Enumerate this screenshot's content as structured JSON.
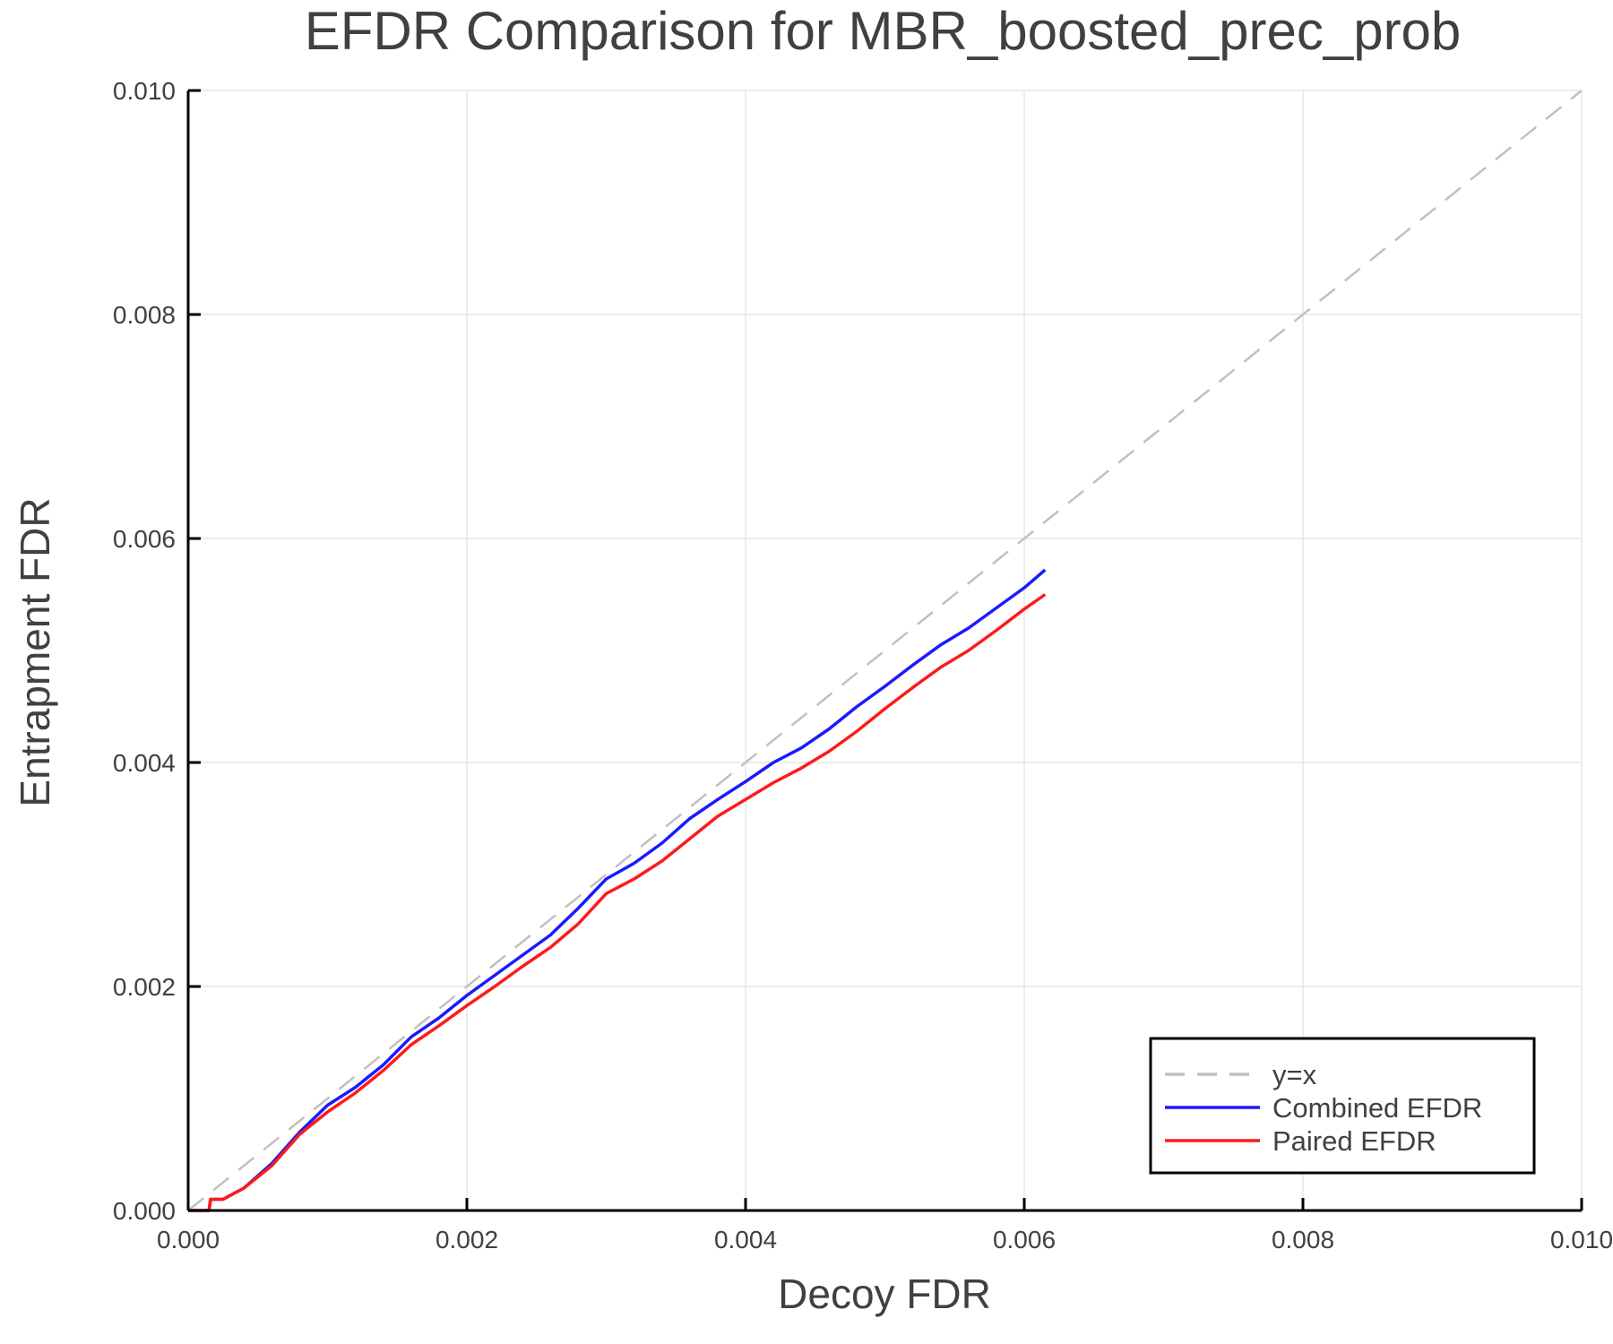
{
  "chart_data": {
    "type": "line",
    "title": "EFDR Comparison for MBR_boosted_prec_prob",
    "xlabel": "Decoy FDR",
    "ylabel": "Entrapment FDR",
    "xlim": [
      0,
      0.01
    ],
    "ylim": [
      0,
      0.01
    ],
    "xticks": [
      "0.000",
      "0.002",
      "0.004",
      "0.006",
      "0.008",
      "0.010"
    ],
    "yticks": [
      "0.000",
      "0.002",
      "0.004",
      "0.006",
      "0.008",
      "0.010"
    ],
    "grid": true,
    "legend_position": "bottom-right",
    "series": [
      {
        "name": "y=x",
        "color": "#c0c0c0",
        "style": "dashed",
        "x": [
          0,
          0.01
        ],
        "y": [
          0,
          0.01
        ]
      },
      {
        "name": "Combined EFDR",
        "color": "#1a1aff",
        "style": "solid",
        "x": [
          0,
          0.00015,
          0.00016,
          0.00025,
          0.0004,
          0.0006,
          0.0008,
          0.001,
          0.0012,
          0.0014,
          0.0016,
          0.0018,
          0.002,
          0.0022,
          0.0024,
          0.0026,
          0.0028,
          0.003,
          0.0032,
          0.0034,
          0.0036,
          0.0038,
          0.004,
          0.0042,
          0.0044,
          0.0046,
          0.0048,
          0.005,
          0.0052,
          0.0054,
          0.0056,
          0.0058,
          0.006,
          0.00615
        ],
        "y": [
          0,
          0,
          0.0001,
          0.0001,
          0.0002,
          0.00042,
          0.0007,
          0.00094,
          0.0011,
          0.0013,
          0.00155,
          0.00172,
          0.00192,
          0.0021,
          0.00228,
          0.00246,
          0.0027,
          0.00296,
          0.0031,
          0.00328,
          0.0035,
          0.00367,
          0.00383,
          0.004,
          0.00413,
          0.0043,
          0.0045,
          0.00468,
          0.00487,
          0.00505,
          0.0052,
          0.00538,
          0.00556,
          0.00572
        ]
      },
      {
        "name": "Paired EFDR",
        "color": "#ff1a1a",
        "style": "solid",
        "x": [
          0,
          0.00015,
          0.00016,
          0.00025,
          0.0004,
          0.0006,
          0.0008,
          0.001,
          0.0012,
          0.0014,
          0.0016,
          0.0018,
          0.002,
          0.0022,
          0.0024,
          0.0026,
          0.0028,
          0.003,
          0.0032,
          0.0034,
          0.0036,
          0.0038,
          0.004,
          0.0042,
          0.0044,
          0.0046,
          0.0048,
          0.005,
          0.0052,
          0.0054,
          0.0056,
          0.0058,
          0.006,
          0.00615
        ],
        "y": [
          0,
          0,
          0.0001,
          0.0001,
          0.0002,
          0.0004,
          0.00068,
          0.00088,
          0.00105,
          0.00125,
          0.00148,
          0.00165,
          0.00183,
          0.002,
          0.00218,
          0.00235,
          0.00256,
          0.00283,
          0.00296,
          0.00312,
          0.00332,
          0.00352,
          0.00367,
          0.00382,
          0.00395,
          0.0041,
          0.00428,
          0.00448,
          0.00467,
          0.00485,
          0.005,
          0.00518,
          0.00537,
          0.0055
        ]
      }
    ]
  }
}
